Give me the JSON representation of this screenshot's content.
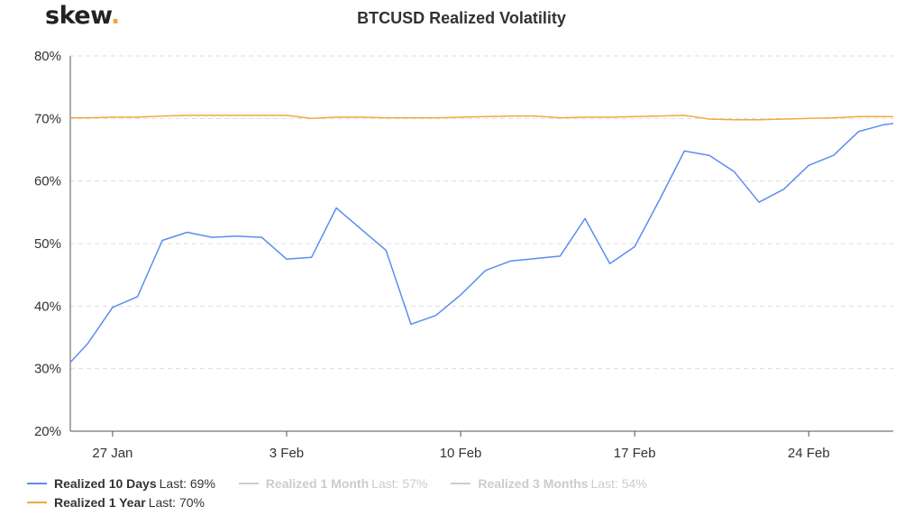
{
  "logo": {
    "text": "skew",
    "dot": "."
  },
  "chart_data": {
    "type": "line",
    "title": "BTCUSD Realized Volatility",
    "ylim": [
      20,
      80
    ],
    "yticks": [
      20,
      30,
      40,
      50,
      60,
      70,
      80
    ],
    "ytick_labels": [
      "20%",
      "30%",
      "40%",
      "50%",
      "60%",
      "70%",
      "80%"
    ],
    "x_ticks": [
      {
        "day": 3,
        "label": "27 Jan"
      },
      {
        "day": 10,
        "label": "3 Feb"
      },
      {
        "day": 17,
        "label": "10 Feb"
      },
      {
        "day": 24,
        "label": "17 Feb"
      },
      {
        "day": 31,
        "label": "24 Feb"
      }
    ],
    "xlim": [
      1.3,
      34.4
    ],
    "grid": true,
    "legend_position": "bottom",
    "series": [
      {
        "name": "Realized 10 Days",
        "last_label": "Last:",
        "last_value": "69%",
        "color": "#5b8def",
        "visible": true,
        "x": [
          1.3,
          2,
          3,
          4,
          5,
          6,
          7,
          8,
          9,
          10,
          11,
          12,
          13,
          14,
          15,
          16,
          17,
          18,
          19,
          20,
          21,
          22,
          23,
          24,
          25,
          26,
          27,
          28,
          29,
          30,
          31,
          32,
          33,
          34,
          34.4
        ],
        "y": [
          31,
          34,
          39.8,
          41.5,
          50.5,
          51.8,
          51,
          51.2,
          51,
          47.5,
          47.8,
          55.7,
          52.3,
          48.9,
          37.1,
          38.5,
          41.8,
          45.7,
          47.2,
          47.6,
          48,
          54,
          46.8,
          49.5,
          57,
          64.8,
          64.1,
          61.5,
          56.6,
          58.7,
          62.5,
          64.1,
          67.9,
          69,
          69.2
        ]
      },
      {
        "name": "Realized 1 Month",
        "last_label": "Last:",
        "last_value": "57%",
        "color": "#bbbbbb",
        "visible": false
      },
      {
        "name": "Realized 3 Months",
        "last_label": "Last:",
        "last_value": "54%",
        "color": "#bbbbbb",
        "visible": false
      },
      {
        "name": "Realized 1 Year",
        "last_label": "Last:",
        "last_value": "70%",
        "color": "#f2a93b",
        "visible": true,
        "x": [
          1.3,
          2,
          3,
          4,
          5,
          6,
          7,
          8,
          9,
          10,
          11,
          12,
          13,
          14,
          15,
          16,
          17,
          18,
          19,
          20,
          21,
          22,
          23,
          24,
          25,
          26,
          27,
          28,
          29,
          30,
          31,
          32,
          33,
          34,
          34.4
        ],
        "y": [
          70.1,
          70.1,
          70.2,
          70.2,
          70.4,
          70.5,
          70.5,
          70.5,
          70.5,
          70.5,
          70,
          70.2,
          70.2,
          70.1,
          70.1,
          70.1,
          70.2,
          70.3,
          70.4,
          70.4,
          70.1,
          70.2,
          70.2,
          70.3,
          70.4,
          70.5,
          69.9,
          69.8,
          69.8,
          69.9,
          70,
          70.1,
          70.3,
          70.3,
          70.3
        ]
      }
    ]
  }
}
